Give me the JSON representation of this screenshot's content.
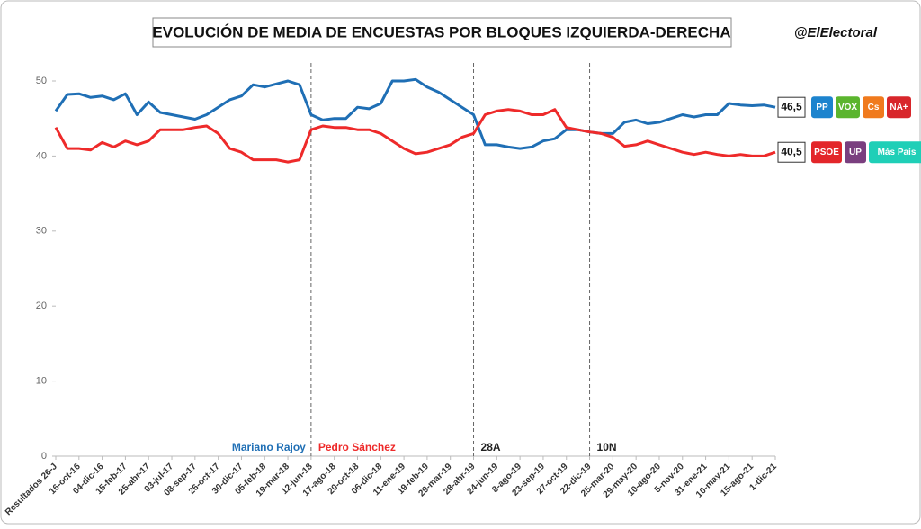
{
  "chart_data": {
    "type": "line",
    "title": "EVOLUCIÓN DE MEDIA DE ENCUESTAS POR BLOQUES IZQUIERDA-DERECHA",
    "source": "@ElElectoral",
    "categories": [
      "Resultados 26-J",
      null,
      "16-oct-16",
      null,
      "04-dic-16",
      null,
      "15-feb-17",
      null,
      "25-abr-17",
      null,
      "03-jul-17",
      null,
      "08-sep-17",
      null,
      "26-oct-17",
      null,
      "30-dic-17",
      null,
      "05-feb-18",
      null,
      "19-mar-18",
      null,
      "12-jun-18",
      null,
      "17-ago-18",
      null,
      "20-oct-18",
      null,
      "06-dic-18",
      null,
      "11-ene-19",
      null,
      "19-feb-19",
      null,
      "29-mar-19",
      null,
      "28-abr-19",
      null,
      "24-jun-19",
      null,
      "8-ago-19",
      null,
      "23-sep-19",
      null,
      "27-oct-19",
      null,
      "22-dic-19",
      null,
      "25-mar-20",
      null,
      "29-may-20",
      null,
      "10-ago-20",
      null,
      "5-nov-20",
      null,
      "31-ene-21",
      null,
      "10-may-21",
      null,
      "15-ago-21",
      null,
      "1-dic-21"
    ],
    "series": [
      {
        "color": "#1f6fb5",
        "end_label": "46,5",
        "logos": [
          {
            "text": "PP",
            "color": "#1d84ce"
          },
          {
            "text": "VOX",
            "color": "#5bb52e"
          },
          {
            "text": "Cs",
            "color": "#f07a1d"
          },
          {
            "text": "NA+",
            "color": "#d8262b"
          }
        ],
        "values": [
          46.0,
          48.2,
          48.3,
          47.8,
          48.0,
          47.5,
          48.3,
          45.5,
          47.2,
          45.8,
          45.5,
          45.2,
          44.9,
          45.5,
          46.5,
          47.5,
          48.0,
          49.5,
          49.2,
          49.6,
          50.0,
          49.5,
          45.5,
          44.8,
          45.0,
          45.0,
          46.5,
          46.3,
          47.0,
          50.0,
          50.0,
          50.2,
          49.2,
          48.5,
          47.5,
          46.5,
          45.5,
          41.5,
          41.5,
          41.2,
          41.0,
          41.2,
          42.0,
          42.3,
          43.5,
          43.5,
          43.2,
          43.0,
          43.0,
          44.5,
          44.8,
          44.3,
          44.5,
          45.0,
          45.5,
          45.2,
          45.5,
          45.5,
          47.0,
          46.8,
          46.7,
          46.8,
          46.5
        ]
      },
      {
        "color": "#ee2a2a",
        "end_label": "40,5",
        "logos": [
          {
            "text": "PSOE",
            "color": "#e3262a"
          },
          {
            "text": "UP",
            "color": "#7a3f7f"
          },
          {
            "text": "Más País",
            "color": "#1fcfb7"
          }
        ],
        "values": [
          43.8,
          41.0,
          41.0,
          40.8,
          41.8,
          41.2,
          42.0,
          41.5,
          42.0,
          43.5,
          43.5,
          43.5,
          43.8,
          44.0,
          43.0,
          41.0,
          40.5,
          39.5,
          39.5,
          39.5,
          39.2,
          39.5,
          43.5,
          44.0,
          43.8,
          43.8,
          43.5,
          43.5,
          43.0,
          42.0,
          41.0,
          40.3,
          40.5,
          41.0,
          41.5,
          42.5,
          43.0,
          45.5,
          46.0,
          46.2,
          46.0,
          45.5,
          45.5,
          46.2,
          43.8,
          43.5,
          43.2,
          43.0,
          42.5,
          41.3,
          41.5,
          42.0,
          41.5,
          41.0,
          40.5,
          40.2,
          40.5,
          40.2,
          40.0,
          40.2,
          40.0,
          40.0,
          40.5
        ]
      }
    ],
    "annotations": [
      {
        "text": "Mariano Rajoy",
        "at": "12-jun-18",
        "color": "#1f6fb5"
      },
      {
        "text": "Pedro Sánchez",
        "at": "12-jun-18",
        "color": "#ee2a2a"
      },
      {
        "text": "28A",
        "at": "28-abr-19",
        "color": "#222222"
      },
      {
        "text": "10N",
        "at": "22-dic-19",
        "color": "#222222"
      }
    ],
    "ylim": [
      0,
      50
    ],
    "yticks": [
      0,
      10,
      20,
      30,
      40,
      50
    ],
    "grid": false
  }
}
